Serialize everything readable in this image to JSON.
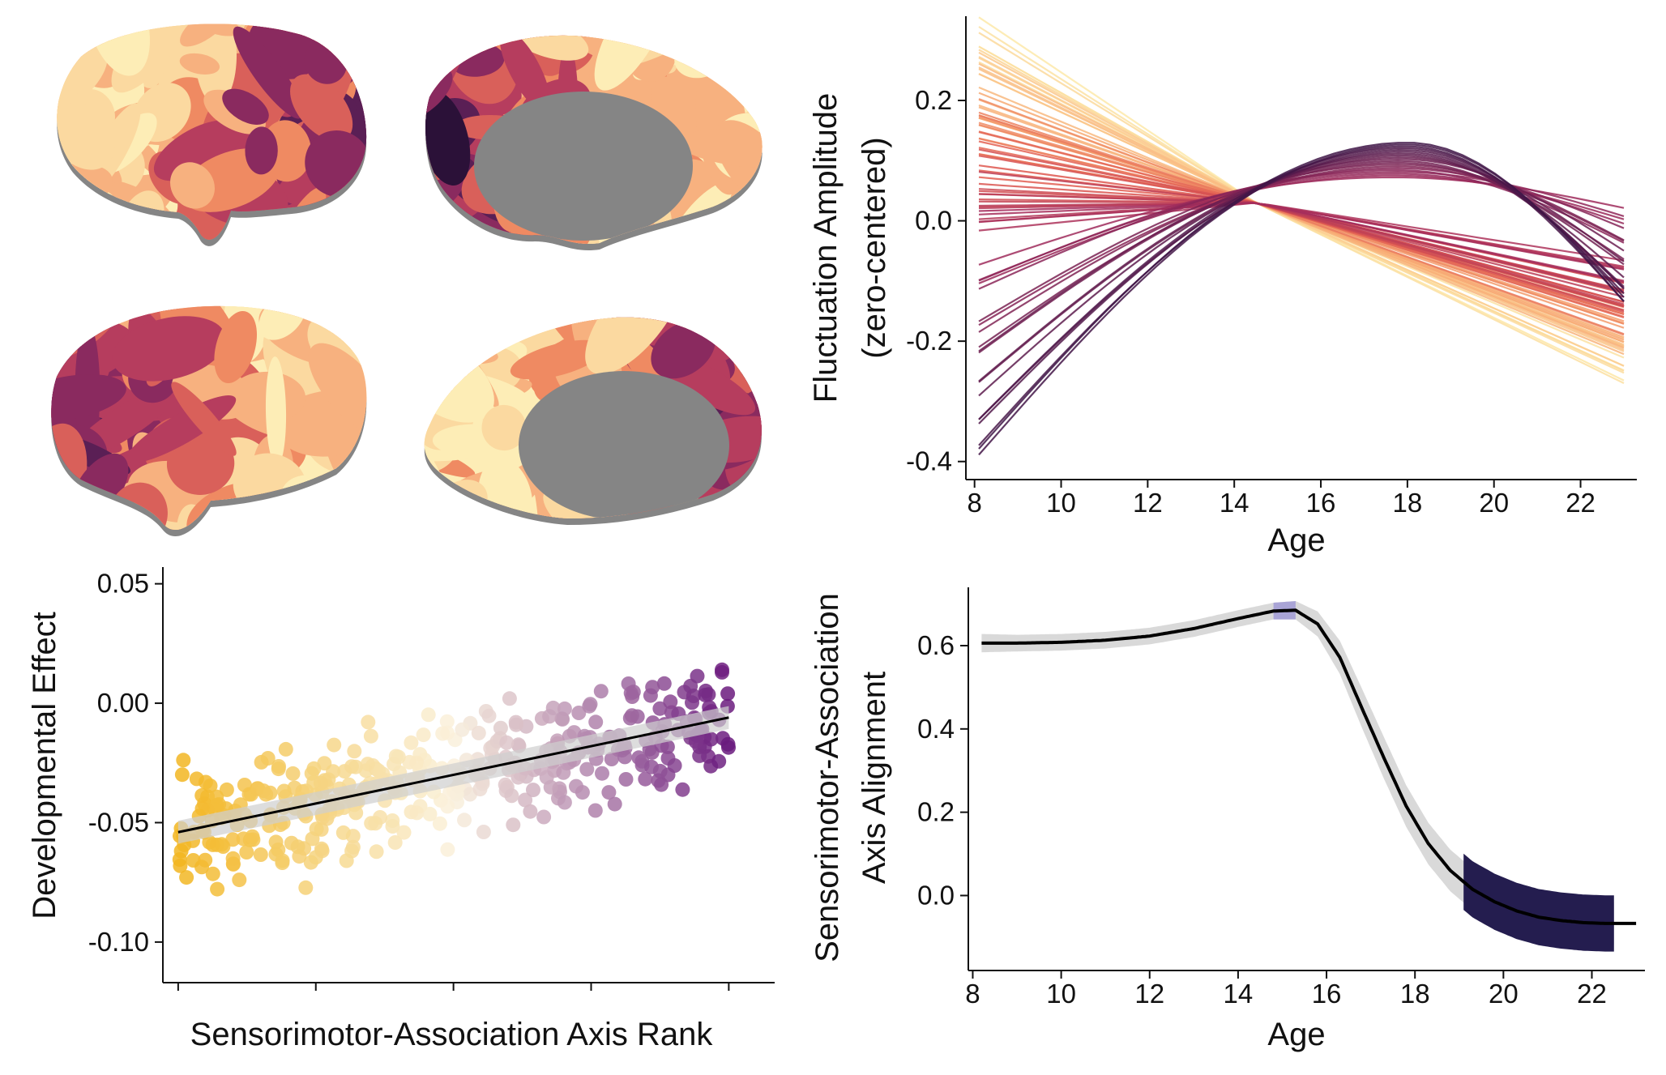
{
  "palette": {
    "cortex": [
      "#2b1138",
      "#5a1f55",
      "#8a2a5f",
      "#b63d5e",
      "#d9605a",
      "#ef8a62",
      "#f7b17f",
      "#fbd9a0",
      "#fdedb6"
    ],
    "medial_wall": "#858585",
    "scatter_low": "#f2b51f",
    "scatter_mid": "#faf1dd",
    "scatter_high": "#6a1a7e",
    "window_early": "#a9a4d6",
    "window_late": "#241d4f",
    "ribbon": "#d9d9d9",
    "fit": "#000000"
  },
  "brain_panels": [
    {
      "view": "left-lateral"
    },
    {
      "view": "left-medial"
    },
    {
      "view": "right-lateral"
    },
    {
      "view": "right-medial"
    }
  ],
  "chart_data": [
    {
      "type": "line",
      "panel": "trajectories",
      "xlabel": "Age",
      "ylabel_lines": [
        "Fluctuation Amplitude",
        "(zero-centered)"
      ],
      "xlim": [
        8,
        23
      ],
      "ylim": [
        -0.43,
        0.34
      ],
      "xticks": [
        "8",
        "10",
        "12",
        "14",
        "16",
        "18",
        "20",
        "22"
      ],
      "yticks": [
        "-0.4",
        "-0.2",
        "0.0",
        "0.2"
      ],
      "xtick_values": [
        8,
        10,
        12,
        14,
        16,
        18,
        20,
        22
      ],
      "ytick_values": [
        -0.4,
        -0.2,
        0.0,
        0.2
      ],
      "n_series": 80,
      "series_examples": [
        {
          "x": [
            8.1,
            12,
            14.5,
            17.5,
            20,
            23
          ],
          "y": [
            0.3,
            0.1,
            0.03,
            -0.05,
            -0.12,
            -0.25
          ]
        },
        {
          "x": [
            8.1,
            12,
            14.5,
            17.5,
            20,
            23
          ],
          "y": [
            0.05,
            0.03,
            0.02,
            -0.01,
            -0.04,
            -0.07
          ]
        },
        {
          "x": [
            8.1,
            12,
            14.5,
            17.5,
            20,
            23
          ],
          "y": [
            -0.4,
            -0.08,
            0.05,
            0.09,
            0.02,
            -0.14
          ]
        }
      ]
    },
    {
      "type": "scatter",
      "panel": "developmental-effect",
      "xlabel": "Sensorimotor-Association Axis Rank",
      "ylabel": "Developmental Effect",
      "xlim": [
        -10,
        390
      ],
      "ylim": [
        -0.117,
        0.057
      ],
      "yticks": [
        "0.05",
        "0.00",
        "-0.05",
        "-0.10"
      ],
      "ytick_values": [
        0.05,
        0.0,
        -0.05,
        -0.1
      ],
      "n_points": 400,
      "fit_line": {
        "x": [
          0,
          360
        ],
        "y": [
          -0.054,
          -0.006
        ]
      },
      "point_summary": [
        {
          "rank": 0,
          "y": -0.04
        },
        {
          "rank": 100,
          "y": -0.045
        },
        {
          "rank": 200,
          "y": -0.03
        },
        {
          "rank": 300,
          "y": -0.012
        },
        {
          "rank": 360,
          "y": 0.01
        }
      ]
    },
    {
      "type": "line",
      "panel": "axis-alignment",
      "xlabel": "Age",
      "ylabel_lines": [
        "Sensorimotor-Association",
        "Axis Alignment"
      ],
      "xlim": [
        8,
        23
      ],
      "ylim": [
        -0.18,
        0.74
      ],
      "xticks": [
        "8",
        "10",
        "12",
        "14",
        "16",
        "18",
        "20",
        "22"
      ],
      "yticks": [
        "0.0",
        "0.2",
        "0.4",
        "0.6"
      ],
      "xtick_values": [
        8,
        10,
        12,
        14,
        16,
        18,
        20,
        22
      ],
      "ytick_values": [
        0.0,
        0.2,
        0.4,
        0.6
      ],
      "x": [
        8.2,
        9,
        10,
        11,
        12,
        13,
        14,
        14.8,
        15.3,
        15.8,
        16.3,
        16.8,
        17.3,
        17.8,
        18.3,
        18.8,
        19.3,
        19.8,
        20.3,
        20.8,
        21.3,
        21.8,
        22.3,
        22.5,
        23
      ],
      "y": [
        0.606,
        0.606,
        0.608,
        0.613,
        0.623,
        0.641,
        0.665,
        0.683,
        0.685,
        0.652,
        0.572,
        0.45,
        0.33,
        0.215,
        0.125,
        0.06,
        0.015,
        -0.015,
        -0.037,
        -0.052,
        -0.06,
        -0.065,
        -0.067,
        -0.067,
        -0.067
      ],
      "ribbon_halfwidth": [
        0.022,
        0.02,
        0.02,
        0.02,
        0.02,
        0.02,
        0.02,
        0.02,
        0.022,
        0.03,
        0.04,
        0.047,
        0.05,
        0.05,
        0.05,
        0.05,
        0.05,
        0.05,
        0.05,
        0.05,
        0.05,
        0.05,
        0.05,
        0.05,
        0.0
      ],
      "significant_windows": [
        {
          "kind": "increase",
          "x": [
            14.8,
            15.3
          ]
        },
        {
          "kind": "decrease",
          "x": [
            19.1,
            22.5
          ]
        }
      ]
    }
  ]
}
